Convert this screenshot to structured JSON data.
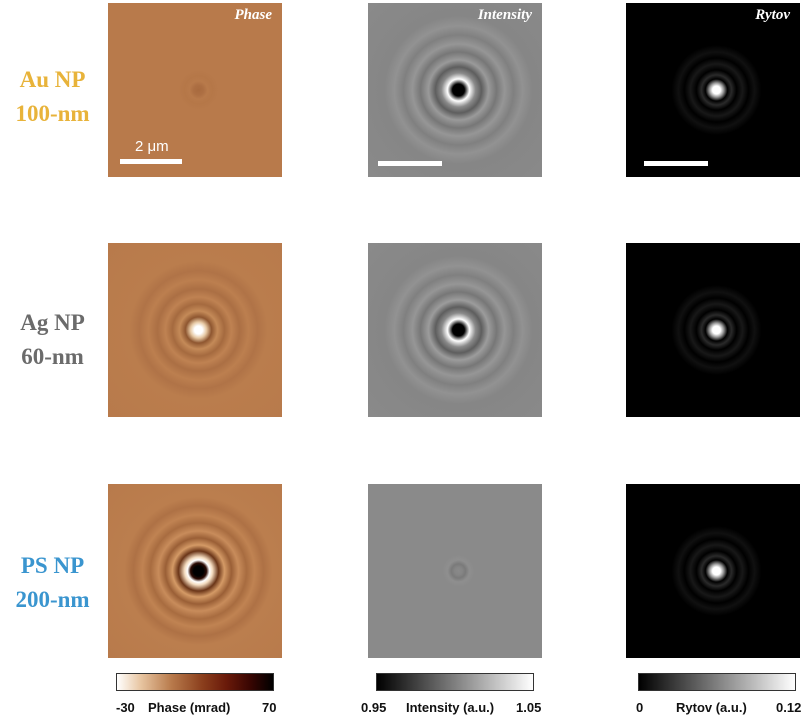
{
  "rows": [
    {
      "line1": "Au NP",
      "line2": "100-nm",
      "color": "#e8b33a"
    },
    {
      "line1": "Ag NP",
      "line2": "60-nm",
      "color": "#6b6b6b"
    },
    {
      "line1": "PS NP",
      "line2": "200-nm",
      "color": "#3a95cf"
    }
  ],
  "columns": [
    {
      "title": "Phase"
    },
    {
      "title": "Intensity"
    },
    {
      "title": "Rytov"
    }
  ],
  "scalebar": {
    "label": "2 μm"
  },
  "colorbars": [
    {
      "min": "-30",
      "label": "Phase (mrad)",
      "max": "70"
    },
    {
      "min": "0.95",
      "label": "Intensity (a.u.)",
      "max": "1.05"
    },
    {
      "min": "0",
      "label": "Rytov (a.u.)",
      "max": "0.12"
    }
  ],
  "colors": {
    "phase_bg": "#b87a4b",
    "intensity_bg": "#8a8a8a",
    "rytov_bg": "#000000"
  }
}
